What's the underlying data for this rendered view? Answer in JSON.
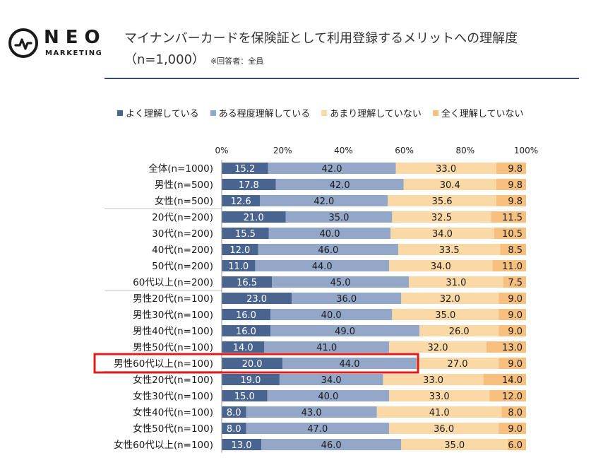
{
  "brand": {
    "name": "NEO",
    "sub": "MARKETING"
  },
  "title": {
    "line1": "マイナンバーカードを保険証として利用登録するメリットへの理解度",
    "line2": "（n=1,000）",
    "note": "※回答者：全員"
  },
  "colors": {
    "s1": "#4a6490",
    "s2": "#93a7c8",
    "s3": "#fbd9a6",
    "s4": "#f7c07e",
    "highlight": "#e01b1b"
  },
  "chart_data": {
    "type": "bar",
    "orientation": "horizontal",
    "stacked": true,
    "xlim": [
      0,
      100
    ],
    "x_ticks": [
      "0%",
      "20%",
      "40%",
      "60%",
      "80%",
      "100%"
    ],
    "highlight_category": "男性60代以上(n=100)",
    "categories": [
      "全体(n=1000)",
      "男性(n=500)",
      "女性(n=500)",
      "20代(n=200)",
      "30代(n=200)",
      "40代(n=200)",
      "50代(n=200)",
      "60代以上(n=200)",
      "男性20代(n=100)",
      "男性30代(n=100)",
      "男性40代(n=100)",
      "男性50代(n=100)",
      "男性60代以上(n=100)",
      "女性20代(n=100)",
      "女性30代(n=100)",
      "女性40代(n=100)",
      "女性50代(n=100)",
      "女性60代以上(n=100)"
    ],
    "series": [
      {
        "name": "よく理解している",
        "values": [
          15.2,
          17.8,
          12.6,
          21.0,
          15.5,
          12.0,
          11.0,
          16.5,
          23.0,
          16.0,
          16.0,
          14.0,
          20.0,
          19.0,
          15.0,
          8.0,
          8.0,
          13.0
        ],
        "labels": [
          "15.2",
          "17.8",
          "12.6",
          "21.0",
          "15.5",
          "12.0",
          "11.0",
          "16.5",
          "23.0",
          "16.0",
          "16.0",
          "14.0",
          "20.0",
          "19.0",
          "15.0",
          "8.0",
          "8.0",
          "13.0"
        ]
      },
      {
        "name": "ある程度理解している",
        "values": [
          42.0,
          42.0,
          42.0,
          35.0,
          40.0,
          46.0,
          44.0,
          45.0,
          36.0,
          40.0,
          49.0,
          41.0,
          44.0,
          34.0,
          40.0,
          43.0,
          47.0,
          46.0
        ],
        "labels": [
          "42.0",
          "42.0",
          "42.0",
          "35.0",
          "40.0",
          "46.0",
          "44.0",
          "45.0",
          "36.0",
          "40.0",
          "49.0",
          "41.0",
          "44.0",
          "34.0",
          "40.0",
          "43.0",
          "47.0",
          "46.0"
        ]
      },
      {
        "name": "あまり理解していない",
        "values": [
          33.0,
          30.4,
          35.6,
          32.5,
          34.0,
          33.5,
          34.0,
          31.0,
          32.0,
          35.0,
          26.0,
          32.0,
          27.0,
          33.0,
          33.0,
          41.0,
          36.0,
          35.0
        ],
        "labels": [
          "33.0",
          "30.4",
          "35.6",
          "32.5",
          "34.0",
          "33.5",
          "34.0",
          "31.0",
          "32.0",
          "35.0",
          "26.0",
          "32.0",
          "27.0",
          "33.0",
          "33.0",
          "41.0",
          "36.0",
          "35.0"
        ]
      },
      {
        "name": "全く理解していない",
        "values": [
          9.8,
          9.8,
          9.8,
          11.5,
          10.5,
          8.5,
          11.0,
          7.5,
          9.0,
          9.0,
          9.0,
          13.0,
          9.0,
          14.0,
          12.0,
          8.0,
          9.0,
          6.0
        ],
        "labels": [
          "9.8",
          "9.8",
          "9.8",
          "11.5",
          "10.5",
          "8.5",
          "11.0",
          "7.5",
          "9.0",
          "9.0",
          "9.0",
          "13.0",
          "9.0",
          "14.0",
          "12.0",
          "8.0",
          "9.0",
          "6.0"
        ]
      }
    ]
  }
}
